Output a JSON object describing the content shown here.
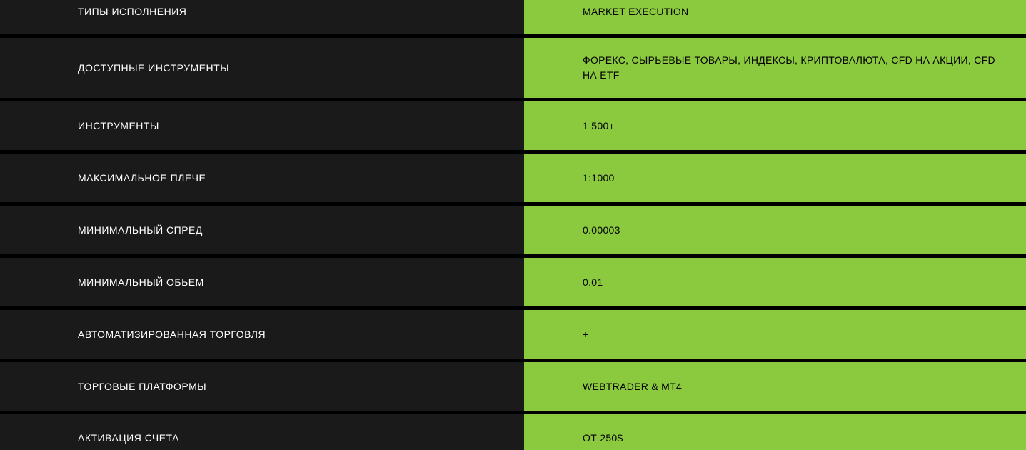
{
  "table": {
    "background_color": "#000000",
    "label_bg_color": "#1a1a1a",
    "value_bg_color": "#8bc93f",
    "label_text_color": "#ffffff",
    "value_text_color": "#000000",
    "font_size": 14,
    "row_gap": 5,
    "label_width": 734,
    "rows": [
      {
        "label": "ТИПЫ ИСПОЛНЕНИЯ",
        "value": "MARKET EXECUTION"
      },
      {
        "label": "ДОСТУПНЫЕ ИНСТРУМЕНТЫ",
        "value": "ФОРЕКС, СЫРЬЕВЫЕ ТОВАРЫ, ИНДЕКСЫ, КРИПТОВАЛЮТА, CFD НА АКЦИИ, CFD НА ETF"
      },
      {
        "label": "ИНСТРУМЕНТЫ",
        "value": "1 500+"
      },
      {
        "label": "МАКСИМАЛЬНОЕ ПЛЕЧЕ",
        "value": "1:1000"
      },
      {
        "label": "МИНИМАЛЬНЫЙ СПРЕД",
        "value": "0.00003"
      },
      {
        "label": "МИНИМАЛЬНЫЙ ОБЬЕМ",
        "value": "0.01"
      },
      {
        "label": "АВТОМАТИЗИРОВАННАЯ ТОРГОВЛЯ",
        "value": "+"
      },
      {
        "label": "ТОРГОВЫЕ ПЛАТФОРМЫ",
        "value": "WEBTRADER & MT4"
      },
      {
        "label": "АКТИВАЦИЯ СЧЕТА",
        "value": "ОТ 250$"
      }
    ]
  }
}
